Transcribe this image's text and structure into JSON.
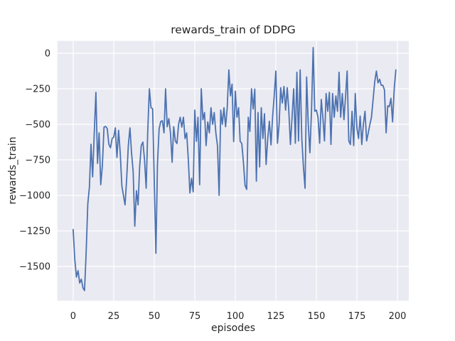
{
  "chart_data": {
    "type": "line",
    "title": "rewards_train of DDPG",
    "xlabel": "episodes",
    "ylabel": "rewards_train",
    "legend_position": "none",
    "grid": true,
    "style": "seaborn-darkgrid",
    "colors": {
      "line": "#4c72b0",
      "plot_background": "#eaeaf2",
      "grid": "#ffffff",
      "text": "#262626",
      "figure_background": "#ffffff"
    },
    "xticks": [
      0,
      25,
      50,
      75,
      100,
      125,
      150,
      175,
      200
    ],
    "yticks": [
      0,
      -250,
      -500,
      -750,
      -1000,
      -1250,
      -1500
    ],
    "xlim": [
      -9.8,
      207
    ],
    "ylim": [
      -1742,
      87
    ],
    "x_start": 0,
    "x_step": 1,
    "series": [
      {
        "name": "rewards_train",
        "values": [
          -1240,
          -1450,
          -1575,
          -1530,
          -1617,
          -1590,
          -1650,
          -1670,
          -1400,
          -1060,
          -940,
          -640,
          -870,
          -560,
          -275,
          -775,
          -560,
          -925,
          -790,
          -520,
          -515,
          -530,
          -640,
          -665,
          -600,
          -590,
          -525,
          -733,
          -542,
          -700,
          -933,
          -1000,
          -1067,
          -880,
          -650,
          -525,
          -700,
          -833,
          -1217,
          -967,
          -1067,
          -800,
          -650,
          -625,
          -750,
          -950,
          -550,
          -250,
          -383,
          -390,
          -900,
          -1408,
          -780,
          -533,
          -480,
          -475,
          -560,
          -250,
          -517,
          -460,
          -560,
          -767,
          -517,
          -617,
          -635,
          -500,
          -450,
          -520,
          -450,
          -600,
          -560,
          -750,
          -983,
          -880,
          -975,
          -400,
          -620,
          -450,
          -925,
          -250,
          -467,
          -417,
          -650,
          -483,
          -560,
          -383,
          -500,
          -417,
          -560,
          -650,
          -1000,
          -400,
          -500,
          -383,
          -517,
          -383,
          -117,
          -300,
          -217,
          -622,
          -267,
          -450,
          -383,
          -620,
          -635,
          -767,
          -930,
          -958,
          -450,
          -550,
          -250,
          -392,
          -252,
          -900,
          -417,
          -800,
          -383,
          -600,
          -425,
          -783,
          -600,
          -478,
          -645,
          -450,
          -300,
          -125,
          -633,
          -500,
          -242,
          -350,
          -233,
          -400,
          -242,
          -400,
          -642,
          -450,
          -250,
          -633,
          -133,
          -617,
          -117,
          -600,
          -800,
          -950,
          -167,
          -500,
          -700,
          -400,
          40,
          -408,
          -400,
          -450,
          -633,
          -325,
          -450,
          -617,
          -283,
          -408,
          -275,
          -642,
          -283,
          -450,
          -300,
          -408,
          -133,
          -450,
          -283,
          -467,
          -300,
          -125,
          -617,
          -642,
          -408,
          -650,
          -283,
          -525,
          -600,
          -442,
          -642,
          -500,
          -408,
          -617,
          -560,
          -500,
          -450,
          -325,
          -200,
          -125,
          -208,
          -183,
          -225,
          -225,
          -258,
          -560,
          -370,
          -375,
          -317,
          -483,
          -250,
          -117
        ]
      }
    ]
  }
}
